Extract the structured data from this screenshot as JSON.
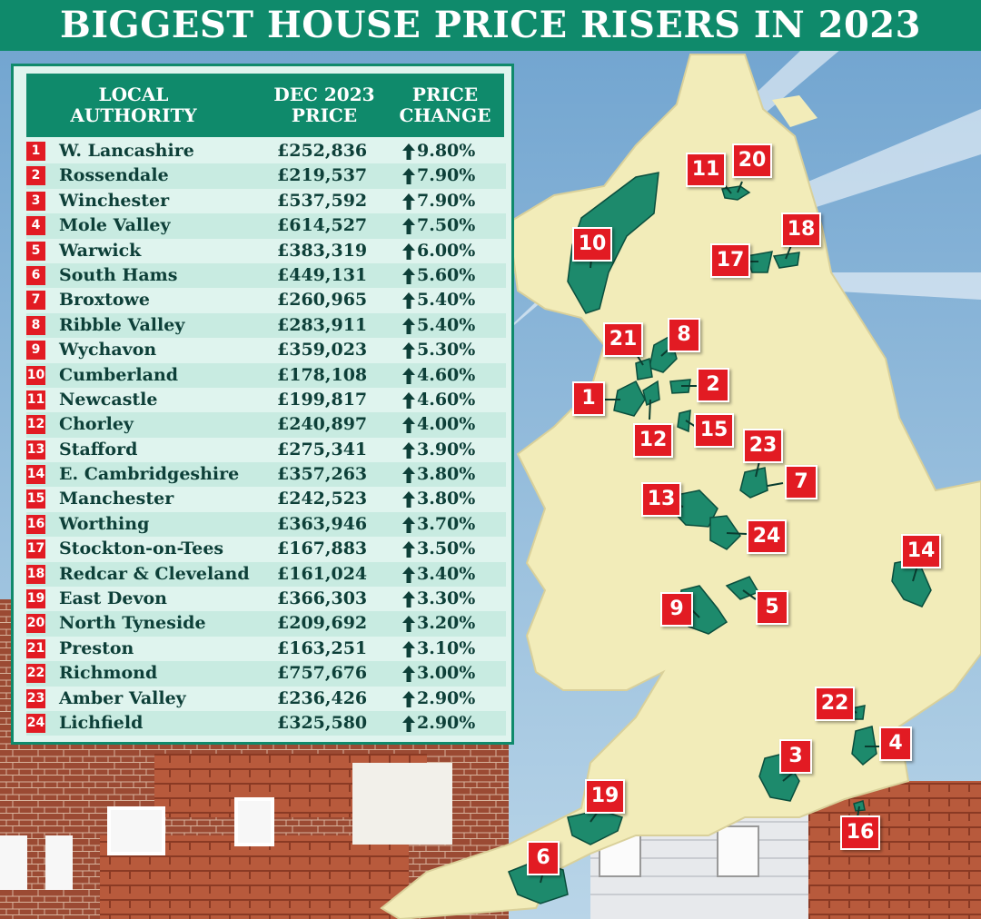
{
  "title": "BIGGEST HOUSE PRICE RISERS IN 2023",
  "colors": {
    "brand_green": "#0f8a6b",
    "badge_red": "#e21b23",
    "land": "#f2ecb9",
    "sea": "#8fb7d6"
  },
  "table": {
    "headers": {
      "authority": "LOCAL\nAUTHORITY",
      "price": "DEC 2023\nPRICE",
      "change": "PRICE\nCHANGE"
    },
    "rows": [
      {
        "rank": "1",
        "name": "W. Lancashire",
        "price": "£252,836",
        "change": "9.80%"
      },
      {
        "rank": "2",
        "name": "Rossendale",
        "price": "£219,537",
        "change": "7.90%"
      },
      {
        "rank": "3",
        "name": "Winchester",
        "price": "£537,592",
        "change": "7.90%"
      },
      {
        "rank": "4",
        "name": "Mole Valley",
        "price": "£614,527",
        "change": "7.50%"
      },
      {
        "rank": "5",
        "name": "Warwick",
        "price": "£383,319",
        "change": "6.00%"
      },
      {
        "rank": "6",
        "name": "South Hams",
        "price": "£449,131",
        "change": "5.60%"
      },
      {
        "rank": "7",
        "name": "Broxtowe",
        "price": "£260,965",
        "change": "5.40%"
      },
      {
        "rank": "8",
        "name": "Ribble Valley",
        "price": "£283,911",
        "change": "5.40%"
      },
      {
        "rank": "9",
        "name": "Wychavon",
        "price": "£359,023",
        "change": "5.30%"
      },
      {
        "rank": "10",
        "name": "Cumberland",
        "price": "£178,108",
        "change": "4.60%"
      },
      {
        "rank": "11",
        "name": "Newcastle",
        "price": "£199,817",
        "change": "4.60%"
      },
      {
        "rank": "12",
        "name": "Chorley",
        "price": "£240,897",
        "change": "4.00%"
      },
      {
        "rank": "13",
        "name": "Stafford",
        "price": "£275,341",
        "change": "3.90%"
      },
      {
        "rank": "14",
        "name": "E. Cambridgeshire",
        "price": "£357,263",
        "change": "3.80%"
      },
      {
        "rank": "15",
        "name": "Manchester",
        "price": "£242,523",
        "change": "3.80%"
      },
      {
        "rank": "16",
        "name": "Worthing",
        "price": "£363,946",
        "change": "3.70%"
      },
      {
        "rank": "17",
        "name": "Stockton-on-Tees",
        "price": "£167,883",
        "change": "3.50%"
      },
      {
        "rank": "18",
        "name": "Redcar & Cleveland",
        "price": "£161,024",
        "change": "3.40%"
      },
      {
        "rank": "19",
        "name": "East Devon",
        "price": "£366,303",
        "change": "3.30%"
      },
      {
        "rank": "20",
        "name": "North Tyneside",
        "price": "£209,692",
        "change": "3.20%"
      },
      {
        "rank": "21",
        "name": "Preston",
        "price": "£163,251",
        "change": "3.10%"
      },
      {
        "rank": "22",
        "name": "Richmond",
        "price": "£757,676",
        "change": "3.00%"
      },
      {
        "rank": "23",
        "name": "Amber Valley",
        "price": "£236,426",
        "change": "2.90%"
      },
      {
        "rank": "24",
        "name": "Lichfield",
        "price": "£325,580",
        "change": "2.90%"
      }
    ]
  },
  "map": {
    "region_labels": [
      "1",
      "2",
      "3",
      "4",
      "5",
      "6",
      "7",
      "8",
      "9",
      "10",
      "11",
      "12",
      "13",
      "14",
      "15",
      "16",
      "17",
      "18",
      "19",
      "20",
      "21",
      "22",
      "23",
      "24"
    ]
  }
}
